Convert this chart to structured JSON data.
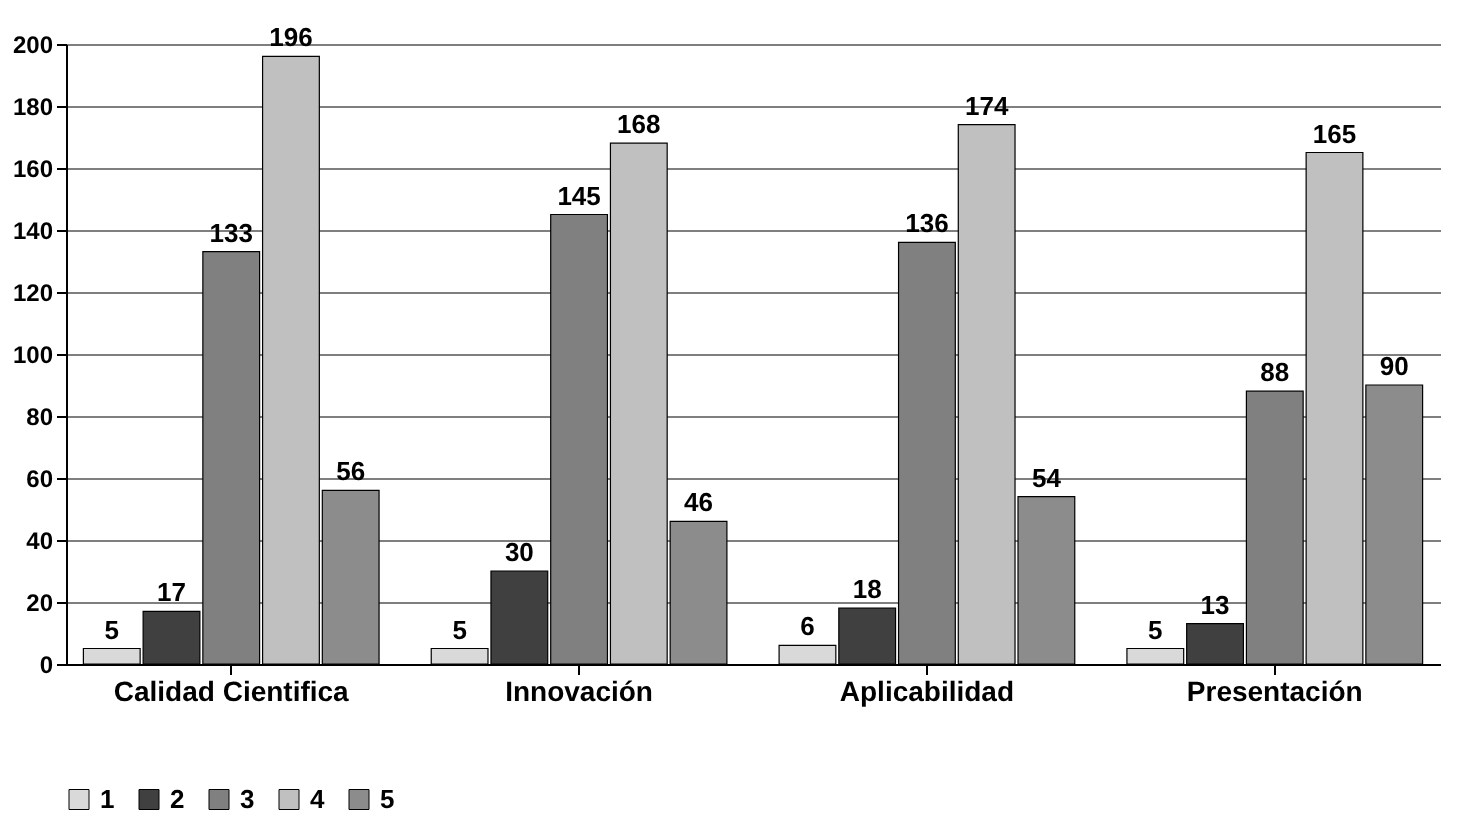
{
  "chart_data": {
    "type": "bar",
    "categories": [
      "Calidad Cientifica",
      "Innovación",
      "Aplicabilidad",
      "Presentación"
    ],
    "series": [
      {
        "name": "1",
        "color": "#d9d9d9",
        "values": [
          5,
          5,
          6,
          5
        ]
      },
      {
        "name": "2",
        "color": "#404040",
        "values": [
          17,
          30,
          18,
          13
        ]
      },
      {
        "name": "3",
        "color": "#808080",
        "values": [
          133,
          145,
          136,
          88
        ]
      },
      {
        "name": "4",
        "color": "#c0c0c0",
        "values": [
          196,
          168,
          174,
          165
        ]
      },
      {
        "name": "5",
        "color": "#8c8c8c",
        "values": [
          56,
          46,
          54,
          90
        ]
      }
    ],
    "ylim": [
      0,
      200
    ],
    "yticks": [
      0,
      20,
      40,
      60,
      80,
      100,
      120,
      140,
      160,
      180,
      200
    ],
    "grid": "y",
    "legend": "bottom",
    "data_labels": true
  }
}
